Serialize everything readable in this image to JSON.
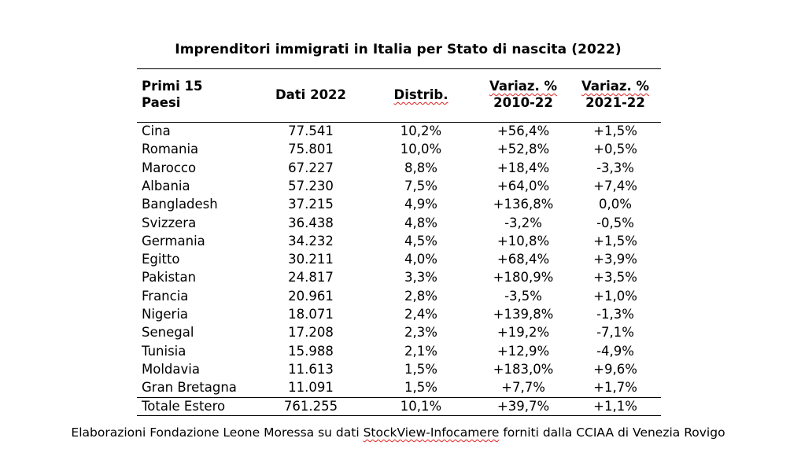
{
  "title": "Imprenditori immigrati in Italia per Stato di nascita (2022)",
  "headers": {
    "country_line1": "Primi 15",
    "country_line2": "Paesi",
    "value": "Dati 2022",
    "dist": "Distrib.",
    "var1_line1": "Variaz. %",
    "var1_line2": "2010-22",
    "var2_line1": "Variaz. %",
    "var2_line2": "2021-22"
  },
  "rows": [
    {
      "country": "Cina",
      "value": "77.541",
      "dist": "10,2%",
      "var1": "+56,4%",
      "var2": "+1,5%"
    },
    {
      "country": "Romania",
      "value": "75.801",
      "dist": "10,0%",
      "var1": "+52,8%",
      "var2": "+0,5%"
    },
    {
      "country": "Marocco",
      "value": "67.227",
      "dist": "8,8%",
      "var1": "+18,4%",
      "var2": "-3,3%"
    },
    {
      "country": "Albania",
      "value": "57.230",
      "dist": "7,5%",
      "var1": "+64,0%",
      "var2": "+7,4%"
    },
    {
      "country": "Bangladesh",
      "value": "37.215",
      "dist": "4,9%",
      "var1": "+136,8%",
      "var2": "0,0%"
    },
    {
      "country": "Svizzera",
      "value": "36.438",
      "dist": "4,8%",
      "var1": "-3,2%",
      "var2": "-0,5%"
    },
    {
      "country": "Germania",
      "value": "34.232",
      "dist": "4,5%",
      "var1": "+10,8%",
      "var2": "+1,5%"
    },
    {
      "country": "Egitto",
      "value": "30.211",
      "dist": "4,0%",
      "var1": "+68,4%",
      "var2": "+3,9%"
    },
    {
      "country": "Pakistan",
      "value": "24.817",
      "dist": "3,3%",
      "var1": "+180,9%",
      "var2": "+3,5%"
    },
    {
      "country": "Francia",
      "value": "20.961",
      "dist": "2,8%",
      "var1": "-3,5%",
      "var2": "+1,0%"
    },
    {
      "country": "Nigeria",
      "value": "18.071",
      "dist": "2,4%",
      "var1": "+139,8%",
      "var2": "-1,3%"
    },
    {
      "country": "Senegal",
      "value": "17.208",
      "dist": "2,3%",
      "var1": "+19,2%",
      "var2": "-7,1%"
    },
    {
      "country": "Tunisia",
      "value": "15.988",
      "dist": "2,1%",
      "var1": "+12,9%",
      "var2": "-4,9%"
    },
    {
      "country": "Moldavia",
      "value": "11.613",
      "dist": "1,5%",
      "var1": "+183,0%",
      "var2": "+9,6%"
    },
    {
      "country": "Gran Bretagna",
      "value": "11.091",
      "dist": "1,5%",
      "var1": "+7,7%",
      "var2": "+1,7%"
    }
  ],
  "total": {
    "country": "Totale Estero",
    "value": "761.255",
    "dist": "10,1%",
    "var1": "+39,7%",
    "var2": "+1,1%"
  },
  "footer": {
    "before": "Elaborazioni Fondazione Leone Moressa su dati ",
    "source": "StockView-Infocamere",
    "after": " forniti dalla CCIAA di Venezia Rovigo"
  }
}
